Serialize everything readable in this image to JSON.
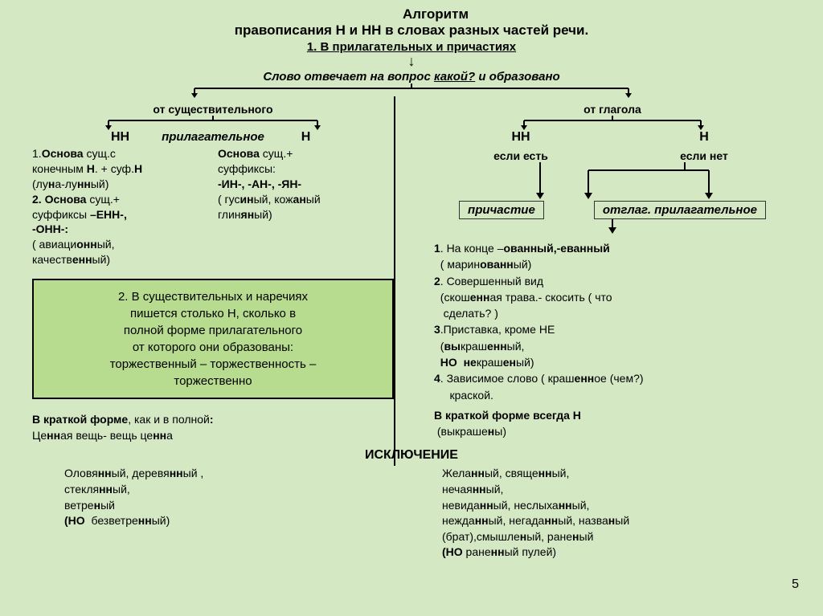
{
  "colors": {
    "background": "#d4e8c4",
    "box": "#b7db8f",
    "border": "#000000",
    "text": "#000000"
  },
  "title1": "Алгоритм",
  "title2": "правописания Н   и НН в словах разных частей речи.",
  "sub1": "1. В прилагательных и причастиях",
  "question_pre": "Слово отвечает на вопрос ",
  "question_word": "какой?",
  "question_post": " и образовано",
  "left": {
    "branch": "от существительного",
    "mid": "прилагательное",
    "hh": "НН",
    "h": "Н",
    "hh_rules_html": "1.<span class='b'>Основа</span> сущ.с<br>конечным <span class='b'>Н</span>. + суф.<span class='b'>Н</span><br>(лу<span class='b'>н</span>а-лу<span class='b'>нн</span>ый)<br><span class='b'>2. Основа</span> сущ.+<br>суффиксы <span class='b'>–ЕНН-,<br>-ОНН-:</span><br>( авиаци<span class='b'>онн</span>ый,<br>качеств<span class='b'>енн</span>ый)",
    "h_rules_html": "<span class='b'>Основа</span> сущ.+<br>суффиксы:<br><span class='b'>-ИН-, -АН-, -ЯН-</span><br>( гус<span class='b'>ин</span>ый, кож<span class='b'>ан</span>ый<br>глин<span class='b'>ян</span>ый)",
    "box_html": "<span class='b'>2.  В  существительных и наречиях</span><br>пишется столько Н, сколько в<br>полной форме прилагательного<br>от которого они образованы:<br>торжестве<span class='b'>нн</span>ый – торжестве<span class='b'>нн</span>ость –<br>торжестве<span class='b'>нн</span>о",
    "krat_html": "<span class='b'>В краткой форме</span>, как и в полной<span class='b'>:</span><br>Це<span class='b'>нн</span>ая вещь- вещь це<span class='b'>нн</span>а"
  },
  "right": {
    "branch": "от глагола",
    "hh": "НН",
    "h": "Н",
    "under_hh": "если есть",
    "under_h": "если нет",
    "mid_l": "причастие",
    "mid_r": "отглаг. прилагательное",
    "items_html": "<span class='b'>1</span>. На конце –<span class='b'>ованный,-еванный</span><br>&nbsp;&nbsp;( марин<span class='b'>ованн</span>ый)<br><span class='b'>2</span>. Совершенный вид<br>&nbsp;&nbsp;(скош<span class='b'>енн</span>ая трава.- скосить ( что<br>&nbsp;&nbsp;&nbsp;сделать? )<br><span class='b'>3</span>.Приставка, кроме НЕ<br>&nbsp;&nbsp;(<span class='b'>вы</span>краш<span class='b'>енн</span>ый,<br>&nbsp;&nbsp;<span class='b'>НО</span>&nbsp;&nbsp;<span class='b'>не</span>краш<span class='b'>ен</span>ый)<br><span class='b'>4</span>. Зависимое слово ( краш<span class='b'>енн</span>ое (чем?)<br>&nbsp;&nbsp;&nbsp;&nbsp;&nbsp;краской.",
    "krat_html": "<span class='b'>В краткой форме всегда Н</span><br>&nbsp;(выкраше<span class='b'>н</span>ы)"
  },
  "excl_head": "ИСКЛЮЧЕНИЕ",
  "excl_left_html": "Оловя<span class='b'>нн</span>ый, деревя<span class='b'>нн</span>ый ,<br>стекля<span class='b'>нн</span>ый,<br>ветре<span class='b'>н</span>ый<br><span class='b'>(НО</span>&nbsp;&nbsp;безветре<span class='b'>нн</span>ый)",
  "excl_right_html": "Жела<span class='b'>нн</span>ый, свяще<span class='b'>нн</span>ый,<br>нечая<span class='b'>нн</span>ый,<br>невида<span class='b'>нн</span>ый, неслыха<span class='b'>нн</span>ый,<br>нежда<span class='b'>нн</span>ый, негада<span class='b'>нн</span>ый, назва<span class='b'>н</span>ый<br>(брат),смышле<span class='b'>н</span>ый, ране<span class='b'>н</span>ый<br><span class='b'>(НО</span> ране<span class='b'>нн</span>ый пулей)",
  "page": "5"
}
